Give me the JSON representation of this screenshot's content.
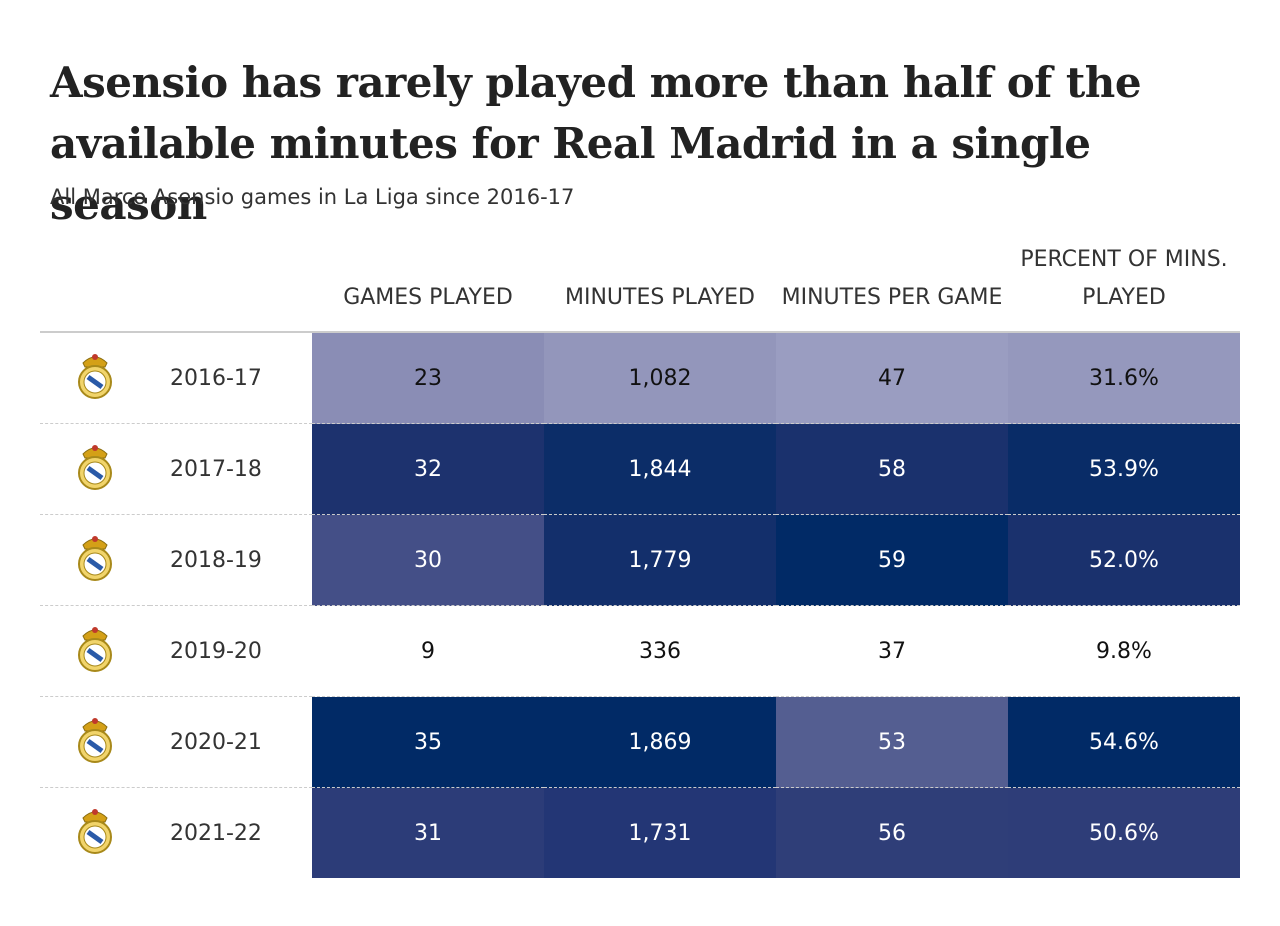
{
  "header": {
    "title": "Asensio has rarely played more than half of the available minutes for Real Madrid in a single season",
    "subtitle": "All Marco Asensio games in La Liga since 2016-17"
  },
  "table": {
    "columns": [
      "GAMES PLAYED",
      "MINUTES PLAYED",
      "MINUTES PER GAME",
      "PERCENT OF MINS. PLAYED"
    ],
    "rows": [
      {
        "season": "2016-17",
        "cells": [
          "23",
          "1,082",
          "47",
          "31.6%"
        ],
        "colors": [
          "#8a8db5",
          "#9396bb",
          "#9a9dc1",
          "#9598bd"
        ]
      },
      {
        "season": "2017-18",
        "cells": [
          "32",
          "1,844",
          "58",
          "53.9%"
        ],
        "colors": [
          "#1d326e",
          "#0c2d68",
          "#1a316d",
          "#092c67"
        ]
      },
      {
        "season": "2018-19",
        "cells": [
          "30",
          "1,779",
          "59",
          "52.0%"
        ],
        "colors": [
          "#444f87",
          "#132f6b",
          "#012a66",
          "#1a316d"
        ]
      },
      {
        "season": "2019-20",
        "cells": [
          "9",
          "336",
          "37",
          "9.8%"
        ],
        "colors": [
          "#ffffff",
          "#ffffff",
          "#ffffff",
          "#ffffff"
        ]
      },
      {
        "season": "2020-21",
        "cells": [
          "35",
          "1,869",
          "53",
          "54.6%"
        ],
        "colors": [
          "#012a66",
          "#012a66",
          "#545e91",
          "#012a66"
        ]
      },
      {
        "season": "2021-22",
        "cells": [
          "31",
          "1,731",
          "56",
          "50.6%"
        ],
        "colors": [
          "#2c3c78",
          "#233675",
          "#2f3e78",
          "#2e3d78"
        ]
      }
    ]
  }
}
